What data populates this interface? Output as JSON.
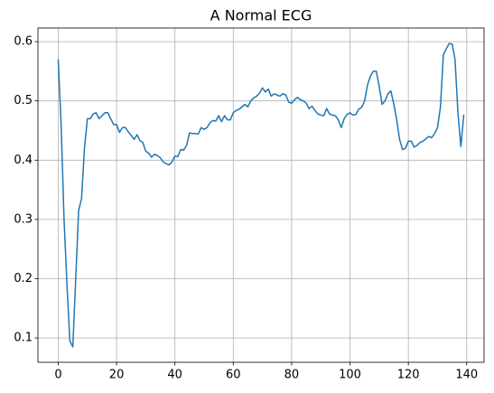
{
  "chart_data": {
    "type": "line",
    "title": "A Normal ECG",
    "x": [
      0,
      1,
      2,
      3,
      4,
      5,
      6,
      7,
      8,
      9,
      10,
      11,
      12,
      13,
      14,
      15,
      16,
      17,
      18,
      19,
      20,
      21,
      22,
      23,
      24,
      25,
      26,
      27,
      28,
      29,
      30,
      31,
      32,
      33,
      34,
      35,
      36,
      37,
      38,
      39,
      40,
      41,
      42,
      43,
      44,
      45,
      46,
      47,
      48,
      49,
      50,
      51,
      52,
      53,
      54,
      55,
      56,
      57,
      58,
      59,
      60,
      61,
      62,
      63,
      64,
      65,
      66,
      67,
      68,
      69,
      70,
      71,
      72,
      73,
      74,
      75,
      76,
      77,
      78,
      79,
      80,
      81,
      82,
      83,
      84,
      85,
      86,
      87,
      88,
      89,
      90,
      91,
      92,
      93,
      94,
      95,
      96,
      97,
      98,
      99,
      100,
      101,
      102,
      103,
      104,
      105,
      106,
      107,
      108,
      109,
      110,
      111,
      112,
      113,
      114,
      115,
      116,
      117,
      118,
      119,
      120,
      121,
      122,
      123,
      124,
      125,
      126,
      127,
      128,
      129,
      130,
      131,
      132,
      133,
      134,
      135,
      136,
      137,
      138,
      139
    ],
    "series": [
      {
        "name": "ECG",
        "color": "#1f77b4",
        "values": [
          0.57,
          0.46,
          0.3,
          0.19,
          0.095,
          0.085,
          0.2,
          0.315,
          0.335,
          0.42,
          0.47,
          0.47,
          0.478,
          0.48,
          0.47,
          0.475,
          0.48,
          0.48,
          0.47,
          0.46,
          0.46,
          0.447,
          0.455,
          0.455,
          0.448,
          0.442,
          0.435,
          0.443,
          0.433,
          0.43,
          0.415,
          0.412,
          0.405,
          0.41,
          0.408,
          0.404,
          0.397,
          0.394,
          0.392,
          0.397,
          0.407,
          0.406,
          0.418,
          0.417,
          0.425,
          0.446,
          0.445,
          0.445,
          0.444,
          0.455,
          0.452,
          0.455,
          0.463,
          0.467,
          0.466,
          0.475,
          0.465,
          0.475,
          0.468,
          0.468,
          0.48,
          0.484,
          0.486,
          0.49,
          0.494,
          0.49,
          0.5,
          0.505,
          0.508,
          0.513,
          0.522,
          0.515,
          0.52,
          0.508,
          0.512,
          0.51,
          0.508,
          0.512,
          0.51,
          0.498,
          0.496,
          0.502,
          0.506,
          0.502,
          0.5,
          0.496,
          0.487,
          0.491,
          0.484,
          0.478,
          0.476,
          0.475,
          0.487,
          0.478,
          0.476,
          0.475,
          0.468,
          0.455,
          0.47,
          0.477,
          0.48,
          0.476,
          0.477,
          0.486,
          0.489,
          0.5,
          0.527,
          0.542,
          0.55,
          0.55,
          0.525,
          0.494,
          0.5,
          0.512,
          0.517,
          0.495,
          0.468,
          0.435,
          0.418,
          0.42,
          0.432,
          0.432,
          0.422,
          0.425,
          0.43,
          0.432,
          0.436,
          0.44,
          0.438,
          0.445,
          0.455,
          0.49,
          0.578,
          0.588,
          0.597,
          0.596,
          0.57,
          0.48,
          0.423,
          0.477
        ]
      }
    ],
    "xlim": [
      -6.95,
      145.95
    ],
    "xticks": [
      0,
      20,
      40,
      60,
      80,
      100,
      120,
      140
    ],
    "ylim": [
      0.059,
      0.623
    ],
    "yticks": [
      0.1,
      0.2,
      0.3,
      0.4,
      0.5,
      0.6
    ],
    "grid": true
  }
}
